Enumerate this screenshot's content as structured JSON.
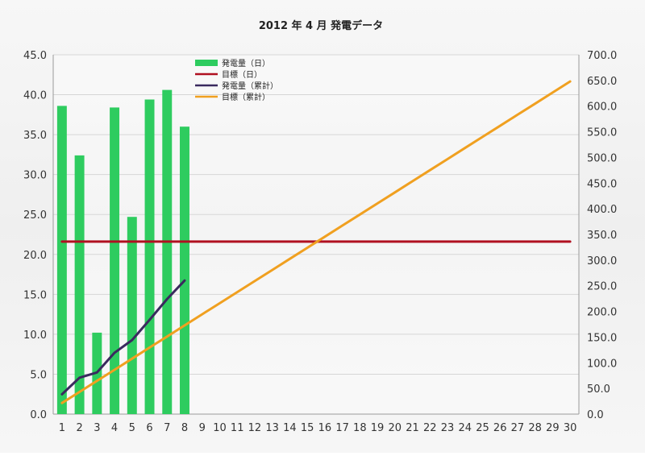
{
  "chart_data": {
    "type": "bar",
    "title": "2012 年 4 月  発電データ",
    "x_categories": [
      "1",
      "2",
      "3",
      "4",
      "5",
      "6",
      "7",
      "8",
      "9",
      "10",
      "11",
      "12",
      "13",
      "14",
      "15",
      "16",
      "17",
      "18",
      "19",
      "20",
      "21",
      "22",
      "23",
      "24",
      "25",
      "26",
      "27",
      "28",
      "29",
      "30"
    ],
    "y_left": {
      "min": 0,
      "max": 45,
      "step": 5,
      "tick_labels": [
        "0.0",
        "5.0",
        "10.0",
        "15.0",
        "20.0",
        "25.0",
        "30.0",
        "35.0",
        "40.0",
        "45.0"
      ]
    },
    "y_right": {
      "min": 0,
      "max": 700,
      "step": 50,
      "tick_labels": [
        "0.0",
        "50.0",
        "100.0",
        "150.0",
        "200.0",
        "250.0",
        "300.0",
        "350.0",
        "400.0",
        "450.0",
        "500.0",
        "550.0",
        "600.0",
        "650.0",
        "700.0"
      ]
    },
    "grid": true,
    "legend_position": "top-left-inside",
    "series": [
      {
        "name": "発電量（日）",
        "kind": "bar",
        "axis": "left",
        "color": "#2ecc5f",
        "values": [
          38.6,
          32.4,
          10.2,
          38.4,
          24.7,
          39.4,
          40.6,
          36.0
        ]
      },
      {
        "name": "目標（日）",
        "kind": "line",
        "axis": "left",
        "color": "#b01020",
        "values": [
          21.6,
          21.6,
          21.6,
          21.6,
          21.6,
          21.6,
          21.6,
          21.6,
          21.6,
          21.6,
          21.6,
          21.6,
          21.6,
          21.6,
          21.6,
          21.6,
          21.6,
          21.6,
          21.6,
          21.6,
          21.6,
          21.6,
          21.6,
          21.6,
          21.6,
          21.6,
          21.6,
          21.6,
          21.6,
          21.6
        ]
      },
      {
        "name": "発電量（累計）",
        "kind": "line",
        "axis": "right",
        "color": "#3a2a5e",
        "values": [
          38.6,
          71.0,
          81.2,
          119.6,
          144.3,
          183.7,
          224.3,
          260.3
        ]
      },
      {
        "name": "目標（累計）",
        "kind": "line",
        "axis": "right",
        "color": "#f0a020",
        "values": [
          21.6,
          43.2,
          64.8,
          86.4,
          108.0,
          129.6,
          151.2,
          172.8,
          194.4,
          216.0,
          237.6,
          259.2,
          280.8,
          302.4,
          324.0,
          345.6,
          367.2,
          388.8,
          410.4,
          432.0,
          453.6,
          475.2,
          496.8,
          518.4,
          540.0,
          561.6,
          583.2,
          604.8,
          626.4,
          648.0
        ]
      }
    ]
  }
}
